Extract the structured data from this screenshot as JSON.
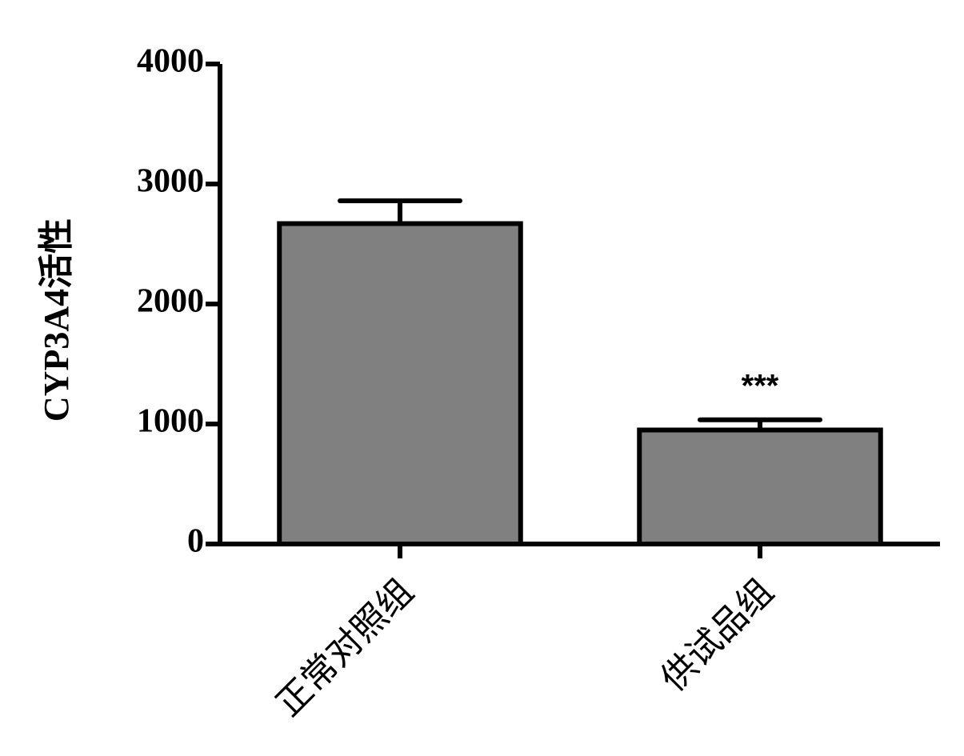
{
  "chart_data": {
    "type": "bar",
    "y_label": "CYP3A4活性",
    "categories": [
      "正常对照组",
      "供试品组"
    ],
    "values": [
      2670,
      950
    ],
    "errors": [
      190,
      85
    ],
    "color": "#808080",
    "ylim": [
      0,
      4000
    ],
    "yticks": [
      0,
      1000,
      2000,
      3000,
      4000
    ],
    "annotations": [
      {
        "text": "***",
        "category": 1
      }
    ],
    "grid": false
  }
}
